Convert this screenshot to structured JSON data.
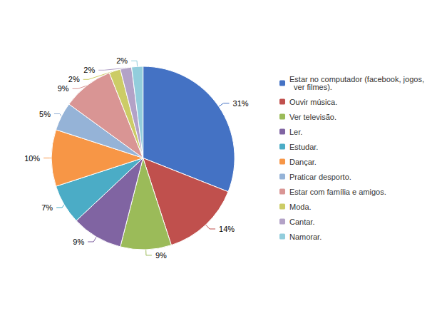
{
  "chart_data": {
    "type": "pie",
    "categories": [
      "Estar no computador (facebook, jogos,\n  ver filmes).",
      "Ouvir música.",
      "Ver televisão.",
      "Ler.",
      "Estudar.",
      "Dançar.",
      "Praticar desporto.",
      "Estar com família e amigos.",
      "Moda.",
      "Cantar.",
      "Namorar."
    ],
    "values": [
      31,
      14,
      9,
      9,
      7,
      10,
      5,
      9,
      2,
      2,
      2
    ],
    "value_labels": [
      "31%",
      "14%",
      "9%",
      "9%",
      "7%",
      "10%",
      "5%",
      "9%",
      "2%",
      "2%",
      "2%"
    ],
    "colors": [
      "#4472C4",
      "#C0504D",
      "#9BBB59",
      "#8064A2",
      "#4BACC6",
      "#F79646",
      "#95B3D7",
      "#D99594",
      "#CCCC66",
      "#B3A2C7",
      "#92CDDC"
    ],
    "data_labels": true,
    "legend": "right"
  }
}
